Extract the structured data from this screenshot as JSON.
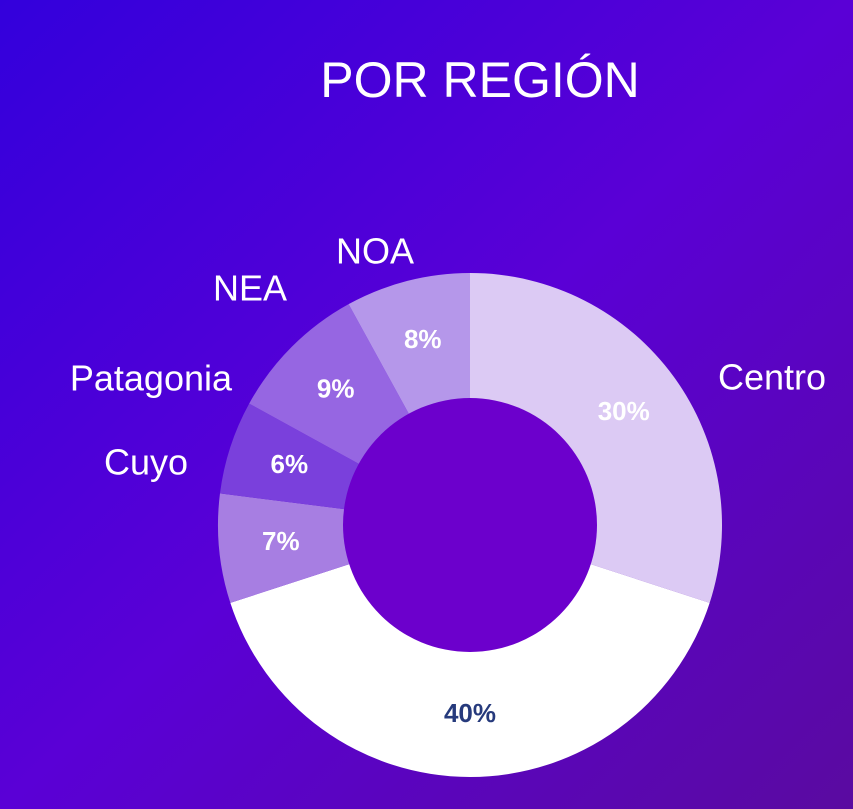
{
  "chart_data": {
    "type": "donut",
    "title": "POR REGIÓN",
    "categories": [
      "Centro",
      null,
      "Cuyo",
      "Patagonia",
      "NEA",
      "NOA"
    ],
    "values": [
      30,
      40,
      7,
      6,
      9,
      8
    ],
    "value_labels": [
      "30%",
      "40%",
      "7%",
      "6%",
      "9%",
      "8%"
    ],
    "colors": [
      "#dccaf4",
      "#ffffff",
      "#a77ee2",
      "#7a40dc",
      "#9666e2",
      "#b597ea"
    ],
    "label_colors": [
      "#ffffff",
      "#263a7c",
      "#ffffff",
      "#ffffff",
      "#ffffff",
      "#ffffff"
    ]
  }
}
